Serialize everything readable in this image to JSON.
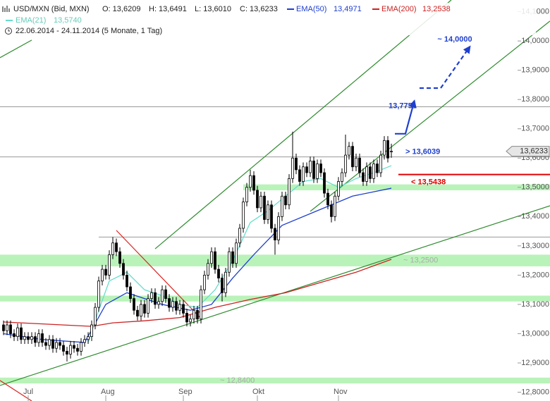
{
  "chart_data": {
    "type": "candlestick",
    "header": {
      "symbol": "USD/MXN (Bid, MXN)",
      "ohlc": [
        "O: 13,6209",
        "H: 13,6491",
        "L: 13,6010",
        "C: 13,6233"
      ],
      "range": "22.06.2014 - 24.11.2014 (5 Monate, 1 Tag)"
    },
    "ylim": [
      12.77,
      14.14
    ],
    "xlim": [
      -1,
      147
    ],
    "yticks": [
      {
        "value": 14.1,
        "label": "14,1000"
      },
      {
        "value": 14.0,
        "label": "14,0000"
      },
      {
        "value": 13.9,
        "label": "13,9000"
      },
      {
        "value": 13.8,
        "label": "13,8000"
      },
      {
        "value": 13.7,
        "label": "13,7000"
      },
      {
        "value": 13.6,
        "label": "13,6000"
      },
      {
        "value": 13.5,
        "label": "13,5000"
      },
      {
        "value": 13.4,
        "label": "13,4000"
      },
      {
        "value": 13.3,
        "label": "13,3000"
      },
      {
        "value": 13.2,
        "label": "13,2000"
      },
      {
        "value": 13.1,
        "label": "13,1000"
      },
      {
        "value": 13.0,
        "label": "13,0000"
      },
      {
        "value": 12.9,
        "label": "12,9000"
      },
      {
        "value": 12.8,
        "label": "12,8000"
      }
    ],
    "xticks": [
      {
        "value": 7,
        "label": "Jul"
      },
      {
        "value": 29,
        "label": "Aug"
      },
      {
        "value": 51,
        "label": "Sep"
      },
      {
        "value": 72,
        "label": "Okt"
      },
      {
        "value": 95,
        "label": "Nov"
      }
    ],
    "candle_colors": {
      "up": "#ffffff",
      "down": "#000000",
      "outline": "#000000"
    },
    "ohlc": [
      [
        13.03,
        13.045,
        12.995,
        13.01
      ],
      [
        13.01,
        13.045,
        12.995,
        13.03
      ],
      [
        13.03,
        13.045,
        12.985,
        13.0
      ],
      [
        13.0,
        13.015,
        12.975,
        12.99
      ],
      [
        12.99,
        13.035,
        12.975,
        13.02
      ],
      [
        13.02,
        13.035,
        12.965,
        12.98
      ],
      [
        12.98,
        13.005,
        12.965,
        12.99
      ],
      [
        12.99,
        13.005,
        12.965,
        12.98
      ],
      [
        12.98,
        13.005,
        12.965,
        12.99
      ],
      [
        12.99,
        13.005,
        12.955,
        12.97
      ],
      [
        12.97,
        13.015,
        12.955,
        13.0
      ],
      [
        13.0,
        13.015,
        12.955,
        12.97
      ],
      [
        12.97,
        12.985,
        12.945,
        12.96
      ],
      [
        12.96,
        12.995,
        12.945,
        12.98
      ],
      [
        12.98,
        12.995,
        12.935,
        12.95
      ],
      [
        12.95,
        12.985,
        12.935,
        12.97
      ],
      [
        12.97,
        12.985,
        12.945,
        12.96
      ],
      [
        12.96,
        12.975,
        12.925,
        12.94
      ],
      [
        12.94,
        12.955,
        12.905,
        12.93
      ],
      [
        12.93,
        12.975,
        12.915,
        12.96
      ],
      [
        12.96,
        12.975,
        12.935,
        12.95
      ],
      [
        12.95,
        12.965,
        12.925,
        12.94
      ],
      [
        12.94,
        12.985,
        12.925,
        12.97
      ],
      [
        12.97,
        12.995,
        12.955,
        12.98
      ],
      [
        12.98,
        13.005,
        12.965,
        12.99
      ],
      [
        12.99,
        13.045,
        12.975,
        13.03
      ],
      [
        13.03,
        13.105,
        13.015,
        13.09
      ],
      [
        13.09,
        13.195,
        13.075,
        13.18
      ],
      [
        13.18,
        13.235,
        13.165,
        13.22
      ],
      [
        13.22,
        13.235,
        13.185,
        13.2
      ],
      [
        13.2,
        13.285,
        13.185,
        13.27
      ],
      [
        13.27,
        13.33,
        13.255,
        13.31
      ],
      [
        13.31,
        13.325,
        13.265,
        13.28
      ],
      [
        13.28,
        13.295,
        13.225,
        13.24
      ],
      [
        13.24,
        13.255,
        13.185,
        13.2
      ],
      [
        13.2,
        13.215,
        13.145,
        13.16
      ],
      [
        13.16,
        13.175,
        13.105,
        13.12
      ],
      [
        13.12,
        13.135,
        13.065,
        13.08
      ],
      [
        13.08,
        13.095,
        13.045,
        13.06
      ],
      [
        13.06,
        13.115,
        13.045,
        13.1
      ],
      [
        13.1,
        13.115,
        13.055,
        13.07
      ],
      [
        13.07,
        13.135,
        13.055,
        13.12
      ],
      [
        13.12,
        13.155,
        13.105,
        13.14
      ],
      [
        13.14,
        13.155,
        13.085,
        13.1
      ],
      [
        13.1,
        13.125,
        13.085,
        13.11
      ],
      [
        13.11,
        13.165,
        13.095,
        13.15
      ],
      [
        13.15,
        13.165,
        13.105,
        13.12
      ],
      [
        13.12,
        13.135,
        13.075,
        13.09
      ],
      [
        13.09,
        13.125,
        13.075,
        13.11
      ],
      [
        13.11,
        13.125,
        13.065,
        13.08
      ],
      [
        13.08,
        13.115,
        13.065,
        13.1
      ],
      [
        13.1,
        13.115,
        13.055,
        13.07
      ],
      [
        13.07,
        13.085,
        13.025,
        13.04
      ],
      [
        13.04,
        13.065,
        13.025,
        13.05
      ],
      [
        13.05,
        13.095,
        13.035,
        13.08
      ],
      [
        13.08,
        13.095,
        13.035,
        13.05
      ],
      [
        13.05,
        13.165,
        13.035,
        13.15
      ],
      [
        13.15,
        13.215,
        13.135,
        13.2
      ],
      [
        13.2,
        13.255,
        13.185,
        13.24
      ],
      [
        13.24,
        13.295,
        13.225,
        13.28
      ],
      [
        13.28,
        13.295,
        13.205,
        13.22
      ],
      [
        13.22,
        13.235,
        13.175,
        13.19
      ],
      [
        13.19,
        13.205,
        13.11,
        13.14
      ],
      [
        13.14,
        13.225,
        13.125,
        13.21
      ],
      [
        13.21,
        13.295,
        13.195,
        13.28
      ],
      [
        13.28,
        13.295,
        13.225,
        13.24
      ],
      [
        13.24,
        13.325,
        13.225,
        13.31
      ],
      [
        13.31,
        13.375,
        13.295,
        13.36
      ],
      [
        13.36,
        13.465,
        13.345,
        13.45
      ],
      [
        13.45,
        13.515,
        13.435,
        13.5
      ],
      [
        13.5,
        13.56,
        13.485,
        13.54
      ],
      [
        13.54,
        13.555,
        13.475,
        13.49
      ],
      [
        13.49,
        13.505,
        13.415,
        13.43
      ],
      [
        13.43,
        13.485,
        13.415,
        13.47
      ],
      [
        13.47,
        13.485,
        13.375,
        13.39
      ],
      [
        13.39,
        13.455,
        13.375,
        13.44
      ],
      [
        13.44,
        13.455,
        13.345,
        13.36
      ],
      [
        13.36,
        13.375,
        13.27,
        13.32
      ],
      [
        13.32,
        13.415,
        13.305,
        13.4
      ],
      [
        13.4,
        13.485,
        13.385,
        13.47
      ],
      [
        13.47,
        13.485,
        13.425,
        13.44
      ],
      [
        13.44,
        13.545,
        13.425,
        13.53
      ],
      [
        13.53,
        13.69,
        13.515,
        13.6
      ],
      [
        13.6,
        13.615,
        13.545,
        13.56
      ],
      [
        13.56,
        13.575,
        13.505,
        13.52
      ],
      [
        13.52,
        13.585,
        13.505,
        13.57
      ],
      [
        13.57,
        13.585,
        13.535,
        13.55
      ],
      [
        13.55,
        13.605,
        13.535,
        13.59
      ],
      [
        13.59,
        13.605,
        13.515,
        13.53
      ],
      [
        13.53,
        13.595,
        13.515,
        13.58
      ],
      [
        13.58,
        13.595,
        13.535,
        13.55
      ],
      [
        13.55,
        13.565,
        13.465,
        13.48
      ],
      [
        13.48,
        13.495,
        13.425,
        13.44
      ],
      [
        13.44,
        13.455,
        13.38,
        13.4
      ],
      [
        13.4,
        13.485,
        13.385,
        13.47
      ],
      [
        13.47,
        13.535,
        13.455,
        13.52
      ],
      [
        13.52,
        13.565,
        13.505,
        13.55
      ],
      [
        13.55,
        13.68,
        13.535,
        13.61
      ],
      [
        13.61,
        13.655,
        13.595,
        13.64
      ],
      [
        13.64,
        13.655,
        13.555,
        13.57
      ],
      [
        13.57,
        13.615,
        13.555,
        13.6
      ],
      [
        13.6,
        13.615,
        13.535,
        13.55
      ],
      [
        13.55,
        13.565,
        13.505,
        13.52
      ],
      [
        13.52,
        13.585,
        13.505,
        13.57
      ],
      [
        13.57,
        13.585,
        13.515,
        13.53
      ],
      [
        13.53,
        13.595,
        13.515,
        13.58
      ],
      [
        13.58,
        13.595,
        13.535,
        13.55
      ],
      [
        13.55,
        13.625,
        13.535,
        13.61
      ],
      [
        13.61,
        13.675,
        13.595,
        13.66
      ],
      [
        13.66,
        13.675,
        13.585,
        13.6
      ],
      [
        13.6209,
        13.6491,
        13.601,
        13.6233
      ]
    ],
    "series": [
      {
        "name": "EMA(50)",
        "color": "#1f3fcf",
        "last": {
          "value": 13.4971,
          "label": "13,4971"
        },
        "x": [
          0,
          11,
          23,
          29,
          35,
          45,
          53,
          59,
          65,
          71,
          79,
          89,
          99,
          110
        ],
        "values": [
          13.0,
          12.98,
          12.97,
          13.1,
          13.14,
          13.1,
          13.08,
          13.1,
          13.19,
          13.27,
          13.37,
          13.42,
          13.47,
          13.497
        ]
      },
      {
        "name": "EMA(200)",
        "color": "#cc2222",
        "last": {
          "value": 13.2538,
          "label": "13,2538"
        },
        "x": [
          0,
          25,
          31,
          40,
          50,
          60,
          70,
          80,
          90,
          100,
          110
        ],
        "values": [
          13.04,
          13.025,
          13.037,
          13.044,
          13.055,
          13.09,
          13.117,
          13.14,
          13.175,
          13.21,
          13.254
        ]
      },
      {
        "name": "EMA(21)",
        "color": "#66ddcc",
        "last": {
          "value": 13.574,
          "label": "13,5740"
        },
        "x": [
          24,
          27,
          30,
          35,
          40,
          45,
          50,
          55,
          60,
          65,
          70,
          75,
          80,
          85,
          90,
          95,
          100,
          105,
          110
        ],
        "values": [
          12.97,
          13.08,
          13.18,
          13.21,
          13.15,
          13.13,
          13.1,
          13.09,
          13.15,
          13.25,
          13.38,
          13.42,
          13.47,
          13.52,
          13.53,
          13.5,
          13.53,
          13.55,
          13.574
        ]
      }
    ],
    "bands": [
      {
        "low": 13.49,
        "high": 13.51,
        "start": 68
      },
      {
        "low": 13.23,
        "high": 13.27,
        "label": "~ 13,2500"
      },
      {
        "low": 13.11,
        "high": 13.13
      },
      {
        "low": 12.83,
        "high": 12.85,
        "label": "~ 12,8400"
      }
    ],
    "levels": [
      {
        "value": 13.7751,
        "color": "#999999"
      },
      {
        "value": 13.6039,
        "color": "#999999",
        "label": "> 13,6039",
        "label_color": "#1f3fcf"
      },
      {
        "value": 13.5438,
        "color": "#e00000",
        "start": 112,
        "label": "< 13,5438",
        "label_color": "#e00000"
      },
      {
        "value": 13.33,
        "color": "#999999",
        "start": 27
      }
    ],
    "trendlines": [
      {
        "color": "#2e8b2e",
        "points": [
          [
            43,
            13.29
          ],
          [
            127,
            14.14
          ]
        ]
      },
      {
        "color": "#2e8b2e",
        "points": [
          [
            87,
            13.418
          ],
          [
            155,
            14.068
          ]
        ]
      },
      {
        "color": "#2e8b2e",
        "points": [
          [
            -1,
            13.943
          ],
          [
            8,
            14.003
          ]
        ]
      },
      {
        "color": "#2e8b2e",
        "points": [
          [
            -1,
            12.823
          ],
          [
            155,
            13.437
          ]
        ]
      },
      {
        "color": "#dd2222",
        "points": [
          [
            32,
            13.353
          ],
          [
            56,
            13.052
          ]
        ]
      },
      {
        "color": "#dd2222",
        "points": [
          [
            -1,
            12.84
          ],
          [
            8,
            12.77
          ]
        ]
      }
    ],
    "projections": [
      {
        "label": "13,7751",
        "dashed": false,
        "points": [
          [
            111,
            13.683
          ],
          [
            114,
            13.683
          ],
          [
            116.4,
            13.79
          ]
        ]
      },
      {
        "label": "~ 14,0000",
        "dashed": true,
        "points": [
          [
            118,
            13.839
          ],
          [
            124,
            13.839
          ],
          [
            132,
            13.976
          ]
        ]
      }
    ],
    "last": {
      "value": 13.6233,
      "label": "13,6233"
    }
  }
}
